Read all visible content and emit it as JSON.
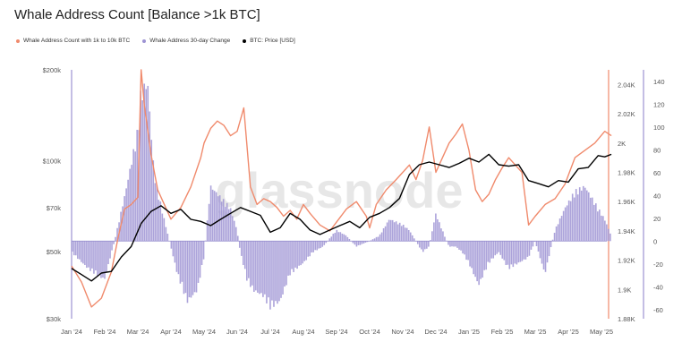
{
  "title": "Whale Address Count [Balance >1k BTC]",
  "watermark": "glassnode",
  "chart_data": {
    "type": "line",
    "title": "Whale Address Count [Balance >1k BTC]",
    "legend_position": "top-left",
    "grid": false,
    "x_labels": [
      "Jan '24",
      "Feb '24",
      "Mar '24",
      "Apr '24",
      "May '24",
      "Jun '24",
      "Jul '24",
      "Aug '24",
      "Sep '24",
      "Oct '24",
      "Nov '24",
      "Dec '24",
      "Jan '25",
      "Feb '25",
      "Mar '25",
      "Apr '25",
      "May '25"
    ],
    "axes": {
      "price": {
        "scale": "log",
        "ticks": [
          "$30k",
          "$50k",
          "$70k",
          "$100k",
          "$200k"
        ],
        "tick_values": [
          30000,
          50000,
          70000,
          100000,
          200000
        ],
        "range": [
          30000,
          200000
        ]
      },
      "count": {
        "ticks": [
          "1.88K",
          "1.9K",
          "1.92K",
          "1.94K",
          "1.96K",
          "1.98K",
          "2K",
          "2.02K",
          "2.04K"
        ],
        "range": [
          1880,
          2050
        ]
      },
      "change": {
        "ticks": [
          "-60",
          "-40",
          "-20",
          "0",
          "20",
          "40",
          "60",
          "80",
          "100",
          "120",
          "140"
        ],
        "range": [
          -68,
          150
        ]
      }
    },
    "series": [
      {
        "name": "Whale Address Count with 1k to 10k BTC",
        "color": "#f08a6c",
        "axis": "count",
        "x": [
          0,
          0.3,
          0.6,
          0.9,
          1.2,
          1.4,
          1.6,
          1.8,
          2.0,
          2.1,
          2.2,
          2.4,
          2.6,
          2.8,
          3.0,
          3.3,
          3.6,
          3.9,
          4.0,
          4.2,
          4.4,
          4.6,
          4.8,
          5.0,
          5.2,
          5.4,
          5.6,
          5.8,
          6.0,
          6.2,
          6.4,
          6.6,
          6.8,
          7.0,
          7.2,
          7.5,
          7.8,
          8.0,
          8.3,
          8.6,
          8.9,
          9.0,
          9.2,
          9.5,
          9.8,
          10.0,
          10.2,
          10.4,
          10.6,
          10.8,
          11.0,
          11.2,
          11.4,
          11.6,
          11.8,
          12.0,
          12.2,
          12.4,
          12.6,
          12.8,
          13.0,
          13.2,
          13.4,
          13.6,
          13.8,
          14.0,
          14.3,
          14.6,
          14.9,
          15.2,
          15.5,
          15.8,
          16.1,
          16.3
        ],
        "y": [
          1916,
          1905,
          1888,
          1894,
          1912,
          1935,
          1955,
          1958,
          1963,
          2050,
          2025,
          1992,
          1968,
          1958,
          1948,
          1956,
          1970,
          1990,
          2000,
          2010,
          2015,
          2012,
          2005,
          2008,
          2024,
          1970,
          1958,
          1962,
          1960,
          1956,
          1950,
          1954,
          1948,
          1958,
          1952,
          1944,
          1940,
          1946,
          1955,
          1960,
          1950,
          1942,
          1958,
          1968,
          1975,
          1980,
          1985,
          1975,
          1988,
          2011,
          1980,
          1990,
          2000,
          2006,
          2013,
          1995,
          1968,
          1960,
          1965,
          1975,
          1983,
          1990,
          1985,
          1980,
          1944,
          1950,
          1958,
          1962,
          1972,
          1990,
          1995,
          2000,
          2008,
          2005
        ]
      },
      {
        "name": "Whale Address 30-day Change",
        "color": "#9d93d3",
        "axis": "change",
        "x": [
          0,
          0.5,
          1.0,
          1.3,
          1.6,
          1.8,
          2.0,
          2.1,
          2.3,
          2.5,
          2.8,
          3.0,
          3.2,
          3.5,
          3.8,
          4.0,
          4.2,
          4.5,
          4.8,
          5.0,
          5.1,
          5.3,
          5.5,
          5.8,
          6.0,
          6.3,
          6.6,
          7.0,
          7.3,
          7.6,
          8.0,
          8.3,
          8.6,
          9.0,
          9.3,
          9.6,
          10.0,
          10.2,
          10.4,
          10.6,
          10.8,
          11.0,
          11.2,
          11.4,
          11.6,
          11.8,
          12.0,
          12.3,
          12.6,
          12.9,
          13.2,
          13.5,
          13.8,
          14.0,
          14.3,
          14.6,
          14.9,
          15.2,
          15.5,
          15.8,
          16.1,
          16.3
        ],
        "y": [
          -10,
          -25,
          -35,
          0,
          40,
          70,
          100,
          135,
          145,
          60,
          20,
          -5,
          -30,
          -55,
          -45,
          -15,
          50,
          40,
          30,
          10,
          -10,
          -35,
          -45,
          -50,
          -60,
          -55,
          -30,
          -20,
          -10,
          -5,
          10,
          5,
          -5,
          0,
          5,
          20,
          15,
          10,
          0,
          -10,
          -5,
          25,
          10,
          -5,
          -5,
          -10,
          -20,
          -40,
          -20,
          -10,
          -25,
          -20,
          -15,
          0,
          -30,
          10,
          30,
          45,
          50,
          35,
          20,
          5
        ]
      },
      {
        "name": "BTC: Price [USD]",
        "color": "#000000",
        "axis": "price",
        "x": [
          0,
          0.3,
          0.6,
          0.9,
          1.2,
          1.5,
          1.8,
          2.1,
          2.4,
          2.7,
          3.0,
          3.3,
          3.6,
          3.9,
          4.2,
          4.5,
          4.8,
          5.1,
          5.4,
          5.7,
          6.0,
          6.3,
          6.6,
          6.9,
          7.2,
          7.5,
          7.8,
          8.1,
          8.4,
          8.7,
          9.0,
          9.3,
          9.6,
          9.9,
          10.2,
          10.5,
          10.8,
          11.1,
          11.4,
          11.7,
          12.0,
          12.3,
          12.6,
          12.9,
          13.2,
          13.5,
          13.8,
          14.1,
          14.4,
          14.7,
          15.0,
          15.3,
          15.6,
          15.9,
          16.1,
          16.3
        ],
        "y": [
          44000,
          42000,
          40000,
          42500,
          43000,
          48000,
          52000,
          62000,
          68000,
          71000,
          67000,
          69000,
          64000,
          63000,
          61000,
          64000,
          67000,
          70000,
          68000,
          66000,
          58000,
          60000,
          67000,
          64000,
          59000,
          57000,
          59000,
          61000,
          63000,
          60000,
          65000,
          67000,
          70000,
          75000,
          90000,
          97000,
          99000,
          97000,
          95000,
          98000,
          102000,
          99000,
          105000,
          97000,
          96000,
          97000,
          86000,
          84000,
          82000,
          86000,
          85000,
          94000,
          95000,
          104000,
          103000,
          105000
        ]
      }
    ]
  }
}
